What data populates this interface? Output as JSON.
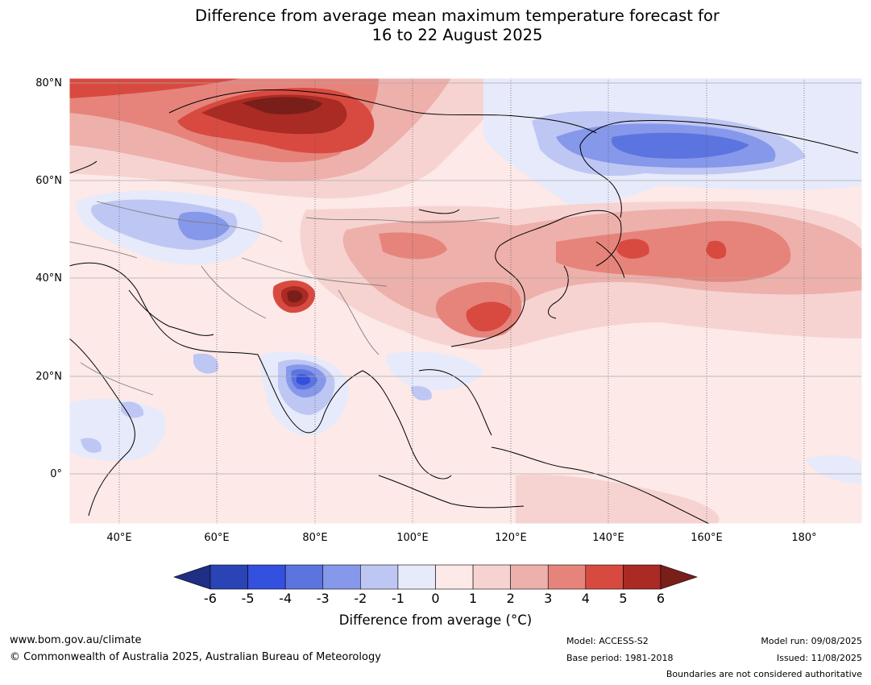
{
  "title": {
    "line1": "Difference from average mean maximum temperature forecast for",
    "line2": "16 to 22 August 2025"
  },
  "axes": {
    "latitudes": [
      "80°N",
      "60°N",
      "40°N",
      "20°N",
      "0°"
    ],
    "longitudes": [
      "40°E",
      "60°E",
      "80°E",
      "100°E",
      "120°E",
      "140°E",
      "160°E",
      "180°"
    ]
  },
  "colorbar": {
    "label": "Difference from average (°C)",
    "ticks": [
      "-6",
      "-5",
      "-4",
      "-3",
      "-2",
      "-1",
      "0",
      "1",
      "2",
      "3",
      "4",
      "5",
      "6"
    ],
    "colors": [
      "#1f2f86",
      "#2a44b5",
      "#3450de",
      "#5c74e0",
      "#8698ea",
      "#bec7f3",
      "#e7eafa",
      "#fce9e8",
      "#f6d3d1",
      "#eeb0ab",
      "#e6847c",
      "#d84a40",
      "#aa2a24",
      "#7a1e1a"
    ]
  },
  "footer": {
    "website": "www.bom.gov.au/climate",
    "copyright": "© Commonwealth of Australia 2025, Australian Bureau of Meteorology",
    "model": "Model: ACCESS-S2",
    "base_period": "Base period: 1981-2018",
    "model_run": "Model run: 09/08/2025",
    "issued": "Issued: 11/08/2025",
    "disclaimer": "Boundaries are not considered authoritative"
  }
}
